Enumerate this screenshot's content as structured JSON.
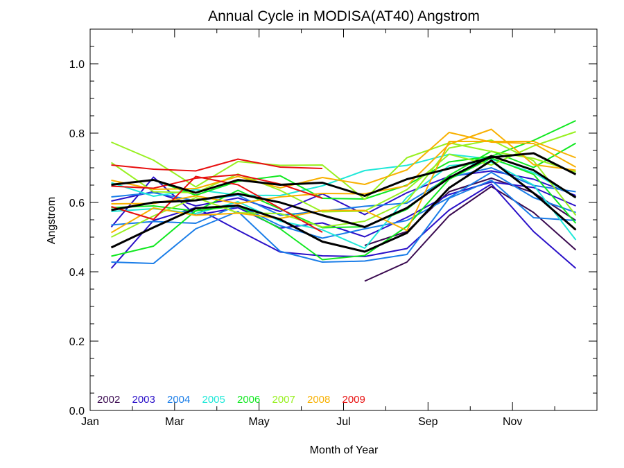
{
  "chart_data": {
    "type": "line",
    "title": "Annual Cycle in MODISA(AT40) Angstrom",
    "xlabel": "Month of Year",
    "ylabel": "Angstrom",
    "xlim": [
      1,
      13
    ],
    "ylim": [
      0.0,
      1.1
    ],
    "x_ticks": [
      {
        "value": 1,
        "label": "Jan"
      },
      {
        "value": 3,
        "label": "Mar"
      },
      {
        "value": 5,
        "label": "May"
      },
      {
        "value": 7,
        "label": "Jul"
      },
      {
        "value": 9,
        "label": "Sep"
      },
      {
        "value": 11,
        "label": "Nov"
      }
    ],
    "x_minor_ticks": [
      2,
      4,
      6,
      8,
      10,
      12
    ],
    "y_ticks": [
      {
        "value": 0.0,
        "label": "0.0"
      },
      {
        "value": 0.2,
        "label": "0.2"
      },
      {
        "value": 0.4,
        "label": "0.4"
      },
      {
        "value": 0.6,
        "label": "0.6"
      },
      {
        "value": 0.8,
        "label": "0.8"
      },
      {
        "value": 1.0,
        "label": "1.0"
      }
    ],
    "grid": false,
    "legend_position": "bottom-left",
    "legend": [
      {
        "label": "2002",
        "color": "#3a0a50"
      },
      {
        "label": "2003",
        "color": "#2a10c8"
      },
      {
        "label": "2004",
        "color": "#1a7de8"
      },
      {
        "label": "2005",
        "color": "#1fe8d8"
      },
      {
        "label": "2006",
        "color": "#10e820"
      },
      {
        "label": "2007",
        "color": "#98f020"
      },
      {
        "label": "2008",
        "color": "#f8b000"
      },
      {
        "label": "2009",
        "color": "#e81010"
      }
    ],
    "x": [
      1.5,
      2.5,
      3.5,
      4.5,
      5.5,
      6.5,
      7.5,
      8.5,
      9.5,
      10.5,
      11.5,
      12.5
    ],
    "series": [
      {
        "color": "#3a0a50",
        "values": [
          null,
          null,
          null,
          null,
          null,
          null,
          0.373,
          0.428,
          0.562,
          0.646,
          0.571,
          0.463
        ]
      },
      {
        "color": "#3a0a50",
        "values": [
          null,
          null,
          null,
          null,
          null,
          null,
          0.476,
          0.516,
          0.631,
          0.67,
          0.628,
          0.548
        ]
      },
      {
        "color": "#2a10c8",
        "values": [
          0.41,
          0.548,
          0.585,
          0.52,
          0.457,
          0.446,
          0.444,
          0.467,
          0.578,
          0.653,
          0.516,
          0.41
        ]
      },
      {
        "color": "#2a10c8",
        "values": [
          0.529,
          0.673,
          0.563,
          0.585,
          0.526,
          0.541,
          0.501,
          0.557,
          0.623,
          0.659,
          0.643,
          0.59
        ]
      },
      {
        "color": "#2a10c8",
        "values": [
          0.604,
          0.631,
          0.59,
          0.613,
          0.574,
          0.625,
          0.565,
          0.628,
          0.675,
          0.691,
          0.667,
          0.62
        ]
      },
      {
        "color": "#1a7de8",
        "values": [
          0.428,
          0.424,
          0.524,
          0.574,
          0.459,
          0.428,
          0.431,
          0.45,
          0.612,
          0.664,
          0.556,
          0.548
        ]
      },
      {
        "color": "#1a7de8",
        "values": [
          0.535,
          0.545,
          0.54,
          0.592,
          0.533,
          0.497,
          0.524,
          0.548,
          0.614,
          0.687,
          0.614,
          0.571
        ]
      },
      {
        "color": "#1a7de8",
        "values": [
          0.616,
          0.628,
          0.605,
          0.621,
          0.563,
          0.575,
          0.589,
          0.598,
          0.672,
          0.7,
          0.649,
          0.631
        ]
      },
      {
        "color": "#1fe8d8",
        "values": [
          0.574,
          0.582,
          0.568,
          0.602,
          0.546,
          0.521,
          0.468,
          0.615,
          0.706,
          0.716,
          0.65,
          0.492
        ]
      },
      {
        "color": "#1fe8d8",
        "values": [
          0.657,
          0.618,
          0.637,
          0.621,
          0.62,
          0.648,
          0.692,
          0.707,
          0.739,
          0.725,
          0.686,
          0.614
        ]
      },
      {
        "color": "#10e820",
        "values": [
          0.445,
          0.474,
          0.576,
          0.59,
          0.524,
          0.435,
          0.447,
          0.531,
          0.667,
          0.728,
          0.681,
          0.54
        ]
      },
      {
        "color": "#10e820",
        "values": [
          0.585,
          0.59,
          0.575,
          0.635,
          0.581,
          0.527,
          0.53,
          0.58,
          0.678,
          0.748,
          0.701,
          0.771
        ]
      },
      {
        "color": "#10e820",
        "values": [
          0.652,
          0.665,
          0.621,
          0.661,
          0.677,
          0.612,
          0.61,
          0.65,
          0.717,
          0.733,
          0.779,
          0.836
        ]
      },
      {
        "color": "#98f020",
        "values": [
          0.5,
          0.561,
          0.614,
          0.57,
          0.568,
          0.529,
          0.546,
          0.603,
          0.757,
          0.78,
          0.72,
          0.563
        ]
      },
      {
        "color": "#98f020",
        "values": [
          0.715,
          0.631,
          0.628,
          0.682,
          0.635,
          0.573,
          0.575,
          0.637,
          0.739,
          0.708,
          0.763,
          0.804
        ]
      },
      {
        "color": "#98f020",
        "values": [
          0.774,
          0.722,
          0.645,
          0.718,
          0.707,
          0.708,
          0.609,
          0.729,
          0.772,
          0.747,
          0.727,
          0.688
        ]
      },
      {
        "color": "#f8b000",
        "values": [
          0.513,
          0.584,
          0.563,
          0.569,
          0.554,
          0.577,
          0.577,
          0.519,
          0.776,
          0.776,
          0.776,
          0.729
        ]
      },
      {
        "color": "#f8b000",
        "values": [
          0.596,
          0.597,
          0.619,
          0.597,
          0.616,
          0.626,
          0.625,
          0.648,
          0.768,
          0.811,
          0.709,
          0.693
        ]
      },
      {
        "color": "#f8b000",
        "values": [
          0.664,
          0.638,
          0.64,
          0.675,
          0.642,
          0.672,
          0.652,
          0.694,
          0.802,
          0.774,
          0.77,
          0.702
        ]
      },
      {
        "color": "#e81010",
        "values": [
          0.588,
          0.551,
          0.675,
          0.651,
          0.583,
          0.514,
          null,
          null,
          null,
          null,
          null,
          null
        ]
      },
      {
        "color": "#e81010",
        "values": [
          0.647,
          0.641,
          0.67,
          0.68,
          0.653,
          0.612,
          null,
          null,
          null,
          null,
          null,
          null
        ]
      },
      {
        "color": "#e81010",
        "values": [
          0.708,
          0.696,
          0.691,
          0.725,
          0.702,
          0.698,
          null,
          null,
          null,
          null,
          null,
          null
        ]
      },
      {
        "color": "#000000",
        "bold": true,
        "values": [
          0.47,
          0.528,
          0.583,
          0.591,
          0.551,
          0.487,
          0.458,
          0.512,
          0.642,
          0.721,
          0.627,
          0.521
        ]
      },
      {
        "color": "#000000",
        "bold": true,
        "values": [
          0.578,
          0.6,
          0.606,
          0.625,
          0.6,
          0.563,
          0.529,
          0.584,
          0.671,
          0.734,
          0.693,
          0.614
        ]
      },
      {
        "color": "#000000",
        "bold": true,
        "values": [
          0.651,
          0.665,
          0.628,
          0.665,
          0.651,
          0.657,
          0.619,
          0.667,
          0.698,
          0.73,
          0.742,
          0.681
        ]
      }
    ]
  }
}
